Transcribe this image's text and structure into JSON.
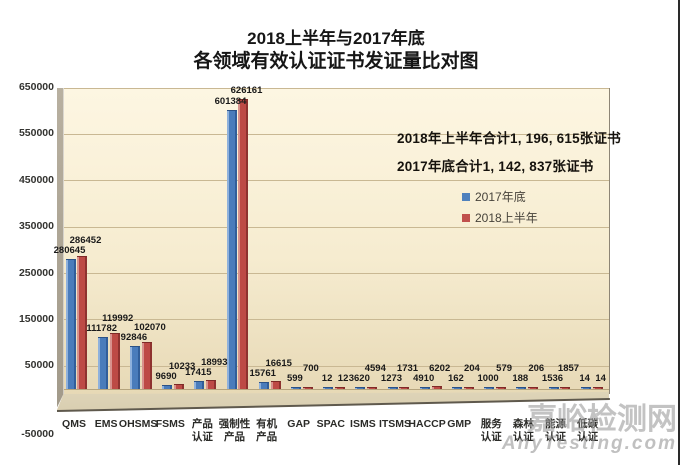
{
  "title": {
    "line1": "2018上半年与2017年底",
    "line2": "各领域有效认证证书发证量比对图"
  },
  "watermark": {
    "line1": "嘉峪检测网",
    "line2": "AnyTesting.com"
  },
  "chart_data": {
    "type": "bar",
    "title": "2018上半年与2017年底 各领域有效认证证书发证量比对图",
    "categories": [
      "QMS",
      "EMS",
      "OHSMS",
      "FSMS",
      "产品\n认证",
      "强制性\n产品",
      "有机\n产品",
      "GAP",
      "SPAC",
      "ISMS",
      "ITSMS",
      "HACCP",
      "GMP",
      "服务\n认证",
      "森林\n认证",
      "能源\n认证",
      "低碳\n认证"
    ],
    "series": [
      {
        "name": "2017年底",
        "color": "#4f81bd",
        "shades": {
          "light": "#8fb1dc",
          "body": "#4a7cbb",
          "dark": "#315e9a",
          "cap": "#2c5286"
        },
        "values": [
          280645,
          111782,
          92846,
          9690,
          17415,
          601384,
          15761,
          599,
          12,
          3620,
          1273,
          4910,
          162,
          1000,
          188,
          1536,
          14
        ]
      },
      {
        "name": "2018上半年",
        "color": "#c0504d",
        "shades": {
          "light": "#d8928d",
          "body": "#bd4a45",
          "dark": "#8e322f",
          "cap": "#7e2a27"
        },
        "values": [
          286452,
          119992,
          102070,
          10233,
          18993,
          626161,
          16615,
          700,
          12,
          4594,
          1731,
          6202,
          204,
          579,
          206,
          1857,
          14
        ]
      }
    ],
    "ylim": [
      -50000,
      650000
    ],
    "ytick_step": 100000,
    "yticks": [
      "650000",
      "550000",
      "450000",
      "350000",
      "250000",
      "150000",
      "50000",
      "-50000"
    ],
    "grid": true,
    "legend_position": "center-right",
    "annotations": [
      "2018年上半年合计1, 196, 615张证书",
      "2017年底合计1, 142, 837张证书"
    ],
    "style": {
      "plot_bg_top": "#fdf6e2",
      "plot_bg_bottom": "#e7d9b6",
      "gridline": "#c9b893",
      "baseline": "#b5a47e",
      "floor": "#d9ceb0",
      "floor_edge": "#5f594d",
      "wall": "#b3ab9b",
      "tick_color": "#333330",
      "category_color": "#2b2b28",
      "value_label_color": "#1a1a1a"
    }
  }
}
